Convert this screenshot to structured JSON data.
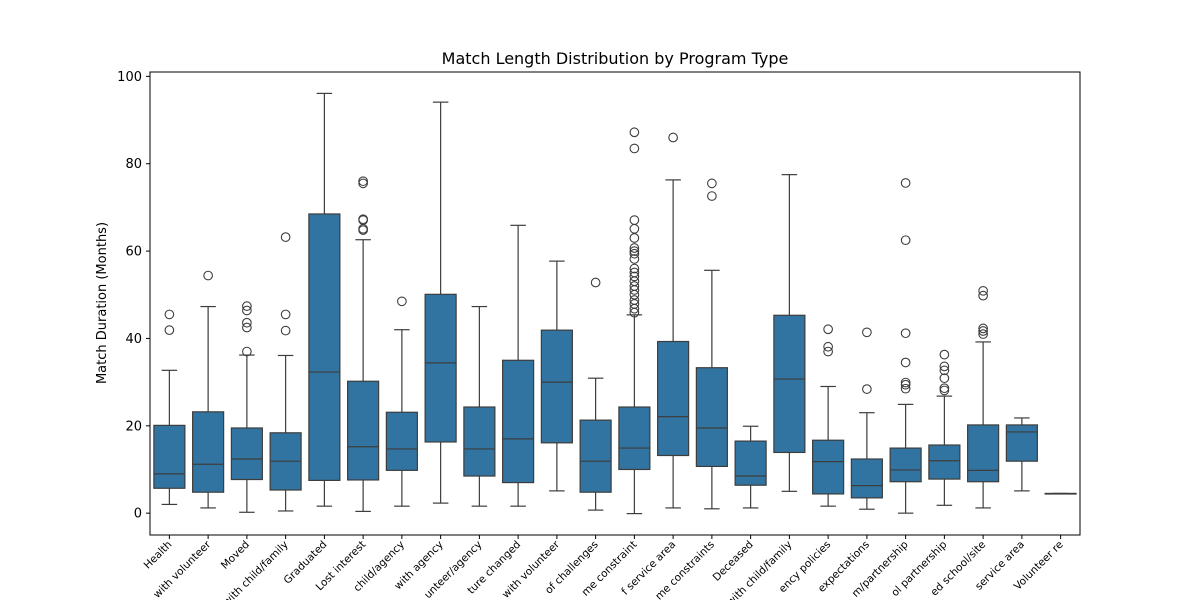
{
  "chart_data": {
    "type": "box",
    "title": "Match Length Distribution by Program Type",
    "xlabel": "",
    "ylabel": "Match Duration (Months)",
    "ylim": [
      -5,
      101
    ],
    "yticks": [
      0,
      20,
      40,
      60,
      80,
      100
    ],
    "grid": false,
    "legend": "none",
    "box_color": "#3274a1",
    "line_color": "#3d3d3d",
    "categories": [
      "Health",
      "with volunteer",
      "Moved",
      "with child/family",
      "Graduated",
      "Lost interest",
      "child/agency",
      "with agency",
      "unteer/agency",
      "ture changed",
      "with volunteer",
      "of challenges",
      "me constraint",
      "f service area",
      "me constraints",
      "Deceased",
      "with child/family",
      "ency policies",
      "expectations",
      "m/partnership",
      "ol partnership",
      "ed school/site",
      "service area",
      "Volunteer re"
    ],
    "boxes": [
      {
        "whislo": 2.0,
        "q1": 5.7,
        "med": 9.0,
        "q3": 20.1,
        "whishi": 32.7,
        "fliers": [
          41.9,
          45.5
        ]
      },
      {
        "whislo": 1.2,
        "q1": 4.8,
        "med": 11.2,
        "q3": 23.2,
        "whishi": 47.3,
        "fliers": [
          54.4
        ]
      },
      {
        "whislo": 0.2,
        "q1": 7.7,
        "med": 12.4,
        "q3": 19.5,
        "whishi": 36.2,
        "fliers": [
          37.0,
          42.5,
          43.6,
          46.4,
          47.4
        ]
      },
      {
        "whislo": 0.5,
        "q1": 5.3,
        "med": 11.9,
        "q3": 18.4,
        "whishi": 36.1,
        "fliers": [
          41.8,
          45.5,
          63.2
        ]
      },
      {
        "whislo": 1.6,
        "q1": 7.5,
        "med": 32.3,
        "q3": 68.5,
        "whishi": 96.1,
        "fliers": []
      },
      {
        "whislo": 0.4,
        "q1": 7.6,
        "med": 15.2,
        "q3": 30.2,
        "whishi": 62.6,
        "fliers": [
          64.8,
          65.1,
          67.1,
          67.3,
          75.5,
          76.0
        ]
      },
      {
        "whislo": 1.6,
        "q1": 9.8,
        "med": 14.7,
        "q3": 23.1,
        "whishi": 42.0,
        "fliers": [
          48.5
        ]
      },
      {
        "whislo": 2.3,
        "q1": 16.3,
        "med": 34.4,
        "q3": 50.1,
        "whishi": 94.1,
        "fliers": []
      },
      {
        "whislo": 1.6,
        "q1": 8.5,
        "med": 14.7,
        "q3": 24.3,
        "whishi": 47.3,
        "fliers": []
      },
      {
        "whislo": 1.6,
        "q1": 7.0,
        "med": 17.0,
        "q3": 35.0,
        "whishi": 65.9,
        "fliers": []
      },
      {
        "whislo": 5.1,
        "q1": 16.1,
        "med": 30.0,
        "q3": 41.9,
        "whishi": 57.7,
        "fliers": []
      },
      {
        "whislo": 0.7,
        "q1": 4.8,
        "med": 11.9,
        "q3": 21.3,
        "whishi": 30.9,
        "fliers": [
          52.8
        ]
      },
      {
        "whislo": -0.1,
        "q1": 10.0,
        "med": 14.9,
        "q3": 24.3,
        "whishi": 45.4,
        "fliers": [
          45.9,
          46.8,
          47.9,
          48.8,
          50.0,
          51.1,
          52.0,
          53.1,
          54.2,
          55.1,
          56.0,
          58.2,
          59.4,
          60.0,
          60.7,
          63.0,
          65.1,
          67.1,
          83.5,
          87.2
        ]
      },
      {
        "whislo": 1.2,
        "q1": 13.2,
        "med": 22.1,
        "q3": 39.3,
        "whishi": 76.3,
        "fliers": [
          86.0
        ]
      },
      {
        "whislo": 1.0,
        "q1": 10.7,
        "med": 19.5,
        "q3": 33.3,
        "whishi": 55.6,
        "fliers": [
          72.6,
          75.5
        ]
      },
      {
        "whislo": 1.2,
        "q1": 6.4,
        "med": 8.5,
        "q3": 16.5,
        "whishi": 19.9,
        "fliers": []
      },
      {
        "whislo": 5.0,
        "q1": 13.9,
        "med": 30.7,
        "q3": 45.3,
        "whishi": 77.5,
        "fliers": []
      },
      {
        "whislo": 1.6,
        "q1": 4.4,
        "med": 11.8,
        "q3": 16.7,
        "whishi": 29.0,
        "fliers": [
          37.0,
          38.1,
          42.1
        ]
      },
      {
        "whislo": 0.9,
        "q1": 3.5,
        "med": 6.3,
        "q3": 12.4,
        "whishi": 23.0,
        "fliers": [
          28.4,
          41.4
        ]
      },
      {
        "whislo": 0.0,
        "q1": 7.2,
        "med": 9.9,
        "q3": 14.9,
        "whishi": 24.9,
        "fliers": [
          28.5,
          29.4,
          29.9,
          34.5,
          41.2,
          62.5,
          75.6
        ]
      },
      {
        "whislo": 1.8,
        "q1": 7.8,
        "med": 12.0,
        "q3": 15.6,
        "whishi": 26.8,
        "fliers": [
          28.1,
          28.6,
          30.9,
          32.7,
          33.6,
          36.3
        ]
      },
      {
        "whislo": 1.2,
        "q1": 7.2,
        "med": 9.8,
        "q3": 20.2,
        "whishi": 39.2,
        "fliers": [
          41.0,
          41.7,
          42.3,
          49.8,
          50.9
        ]
      },
      {
        "whislo": 5.1,
        "q1": 11.9,
        "med": 18.6,
        "q3": 20.2,
        "whishi": 21.8,
        "fliers": []
      },
      {
        "whislo": 4.5,
        "q1": 4.5,
        "med": 4.5,
        "q3": 4.5,
        "whishi": 4.5,
        "fliers": []
      }
    ]
  }
}
